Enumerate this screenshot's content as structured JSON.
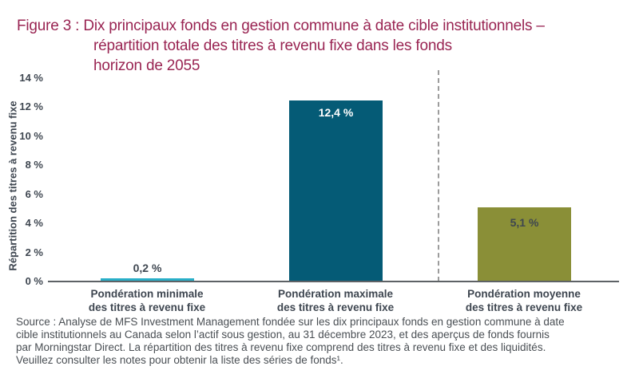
{
  "figure": {
    "title_lines": [
      "Figure 3 : Dix principaux fonds en gestion commune à date cible institutionnels –",
      "répartition totale des titres à revenu fixe dans les fonds",
      "horizon de 2055"
    ],
    "source_lines": [
      "Source : Analyse de MFS Investment Management fondée sur les dix principaux fonds en gestion commune à date",
      "cible institutionnels au Canada selon l’actif sous gestion, au 31 décembre 2023, et des aperçus de fonds fournis",
      "par Morningstar Direct. La répartition des titres à revenu fixe comprend des titres à revenu fixe et des liquidités.",
      "Veuillez consulter les notes pour obtenir la liste des séries de fonds¹."
    ]
  },
  "chart_data": {
    "type": "bar",
    "title": "Figure 3 : Dix principaux fonds en gestion commune à date cible institutionnels – répartition totale des titres à revenu fixe dans les fonds horizon de 2055",
    "categories": [
      "Pondération minimale des titres à revenu fixe",
      "Pondération maximale des titres à revenu fixe",
      "Pondération moyenne des titres à revenu fixe"
    ],
    "values": [
      0.2,
      12.4,
      5.1
    ],
    "value_labels": [
      "0,2 %",
      "12,4 %",
      "5,1 %"
    ],
    "bar_colors": [
      "#29AFC8",
      "#055B76",
      "#8A8F37"
    ],
    "xlabel": "",
    "ylabel": "Répartition des titres à revenu fixe",
    "ylim": [
      0,
      14
    ],
    "ytick_labels": [
      "14 %",
      "12 %",
      "10 %",
      "8 %",
      "6 %",
      "4 %",
      "2 %",
      "0 %"
    ],
    "grid": false,
    "legend": false,
    "dashed_divider_between": "Pondération maximale / Pondération moyenne"
  },
  "colors": {
    "title_text": "#992452",
    "axis_text": "#3E4650",
    "footnote_text": "#4A4F54",
    "baseline": "#5E6266",
    "dashed_divider": "#9C9C9C",
    "value_label_on_dark_bar": "#FFFFFF"
  }
}
